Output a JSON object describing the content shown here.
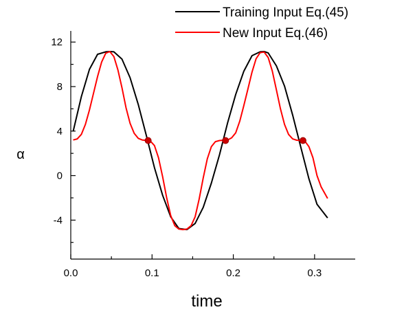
{
  "chart_data": {
    "type": "line",
    "xlabel": "time",
    "ylabel": "α",
    "xlim": [
      0.0,
      0.35
    ],
    "ylim": [
      -7.5,
      13
    ],
    "x_ticks": [
      0.0,
      0.1,
      0.2,
      0.3
    ],
    "x_tick_labels": [
      "0.0",
      "0.1",
      "0.2",
      "0.3"
    ],
    "y_ticks": [
      -4,
      0,
      4,
      8,
      12
    ],
    "y_tick_labels": [
      "-4",
      "0",
      "4",
      "8",
      "12"
    ],
    "legend_position": "top-right",
    "grid": false,
    "series": [
      {
        "name": "Training Input Eq.(45)",
        "color": "#000000",
        "x": [
          0.003,
          0.013,
          0.023,
          0.033,
          0.043,
          0.048,
          0.053,
          0.063,
          0.073,
          0.083,
          0.093,
          0.103,
          0.113,
          0.123,
          0.133,
          0.143,
          0.153,
          0.163,
          0.173,
          0.183,
          0.193,
          0.203,
          0.213,
          0.223,
          0.233,
          0.238,
          0.243,
          0.253,
          0.263,
          0.273,
          0.283,
          0.293,
          0.303,
          0.316
        ],
        "y": [
          3.98,
          7.1,
          9.55,
          10.9,
          11.12,
          11.15,
          11.12,
          10.47,
          8.8,
          6.4,
          3.6,
          0.71,
          -1.77,
          -3.71,
          -4.75,
          -4.85,
          -4.3,
          -2.85,
          -0.68,
          1.88,
          4.75,
          7.3,
          9.38,
          10.78,
          11.12,
          11.15,
          11.02,
          9.86,
          8.05,
          5.45,
          2.58,
          -0.28,
          -2.58,
          -3.8
        ]
      },
      {
        "name": "New Input Eq.(46)",
        "color": "#ff0000",
        "x": [
          0.003,
          0.008,
          0.013,
          0.018,
          0.023,
          0.028,
          0.033,
          0.038,
          0.043,
          0.048,
          0.053,
          0.058,
          0.063,
          0.068,
          0.073,
          0.078,
          0.083,
          0.088,
          0.093,
          0.098,
          0.103,
          0.108,
          0.113,
          0.118,
          0.123,
          0.128,
          0.133,
          0.138,
          0.143,
          0.148,
          0.153,
          0.158,
          0.163,
          0.168,
          0.173,
          0.178,
          0.183,
          0.188,
          0.193,
          0.198,
          0.203,
          0.208,
          0.213,
          0.218,
          0.223,
          0.228,
          0.233,
          0.238,
          0.243,
          0.248,
          0.253,
          0.258,
          0.263,
          0.268,
          0.273,
          0.278,
          0.283,
          0.288,
          0.293,
          0.298,
          0.303,
          0.308,
          0.316
        ],
        "y": [
          3.2,
          3.3,
          3.7,
          4.6,
          5.9,
          7.4,
          8.9,
          10.2,
          11.0,
          11.15,
          10.7,
          9.5,
          7.9,
          6.1,
          4.7,
          3.8,
          3.35,
          3.2,
          3.17,
          3.1,
          2.7,
          1.6,
          -0.1,
          -2.0,
          -3.6,
          -4.5,
          -4.8,
          -4.85,
          -4.8,
          -4.5,
          -3.7,
          -2.1,
          -0.2,
          1.5,
          2.6,
          3.05,
          3.15,
          3.18,
          3.2,
          3.4,
          3.85,
          4.9,
          6.3,
          7.8,
          9.3,
          10.5,
          11.05,
          11.1,
          10.6,
          9.4,
          7.7,
          6.0,
          4.6,
          3.7,
          3.3,
          3.18,
          3.15,
          3.1,
          2.6,
          1.6,
          0.0,
          -1.0,
          -2.05
        ]
      }
    ],
    "markers": {
      "color": "#cc0000",
      "points": [
        {
          "x": 0.0952,
          "y": 3.15
        },
        {
          "x": 0.1904,
          "y": 3.15
        },
        {
          "x": 0.2857,
          "y": 3.15
        }
      ]
    }
  }
}
